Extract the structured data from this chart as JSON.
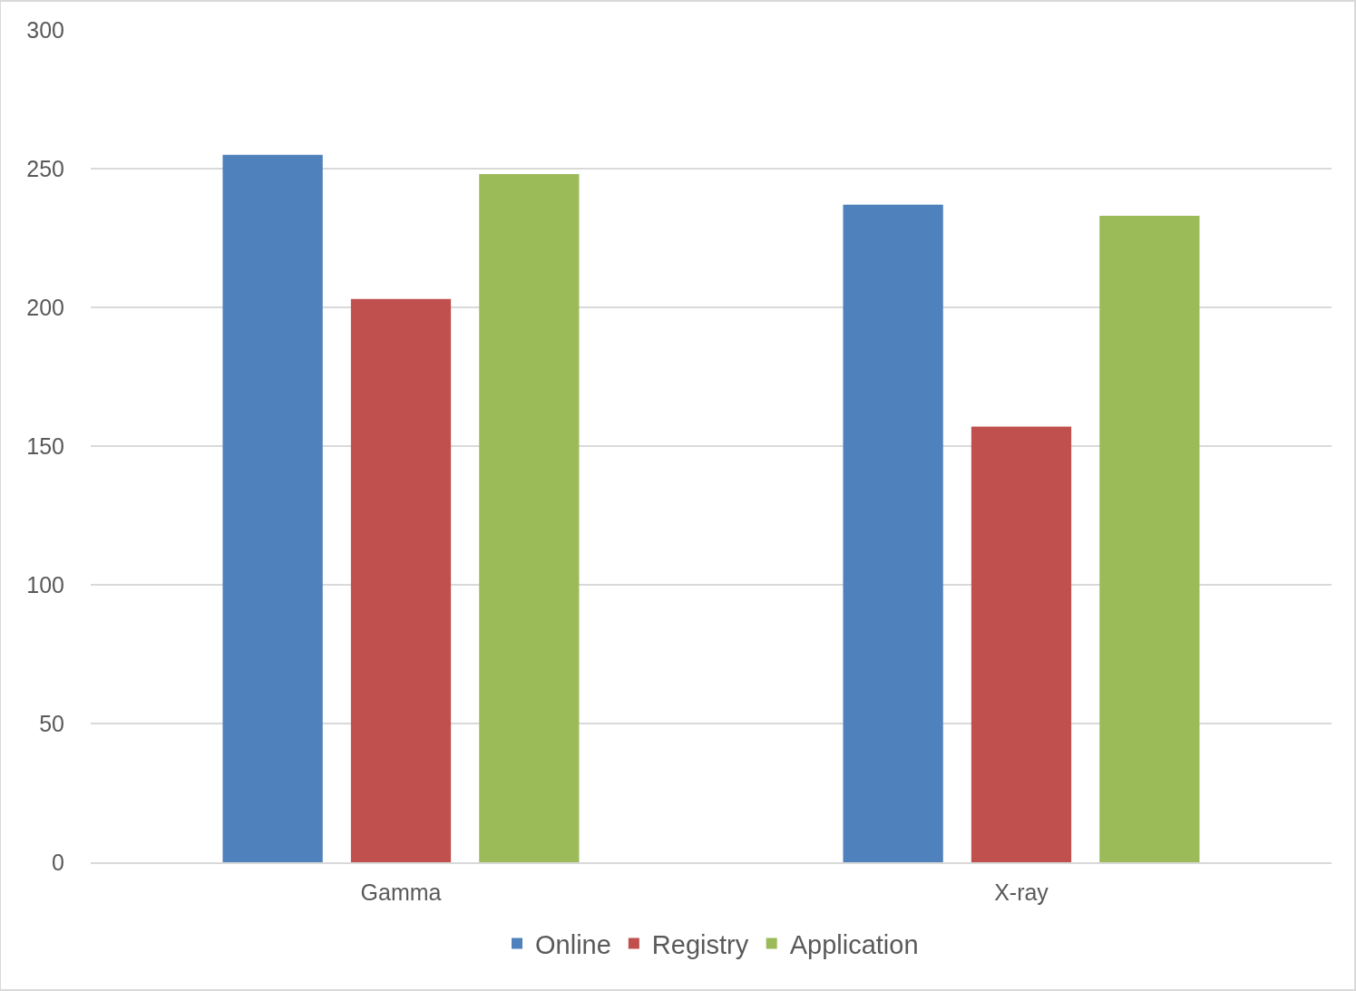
{
  "chart_data": {
    "type": "bar",
    "categories": [
      "Gamma",
      "X-ray"
    ],
    "series": [
      {
        "name": "Online",
        "color": "#4f81bd",
        "values": [
          255,
          237
        ]
      },
      {
        "name": "Registry",
        "color": "#c0504d",
        "values": [
          203,
          157
        ]
      },
      {
        "name": "Application",
        "color": "#9bbb59",
        "values": [
          248,
          233
        ]
      }
    ],
    "ylim": [
      0,
      300
    ],
    "yticks": [
      0,
      50,
      100,
      150,
      200,
      250,
      300
    ],
    "grid": "y",
    "legend": "bottom"
  }
}
